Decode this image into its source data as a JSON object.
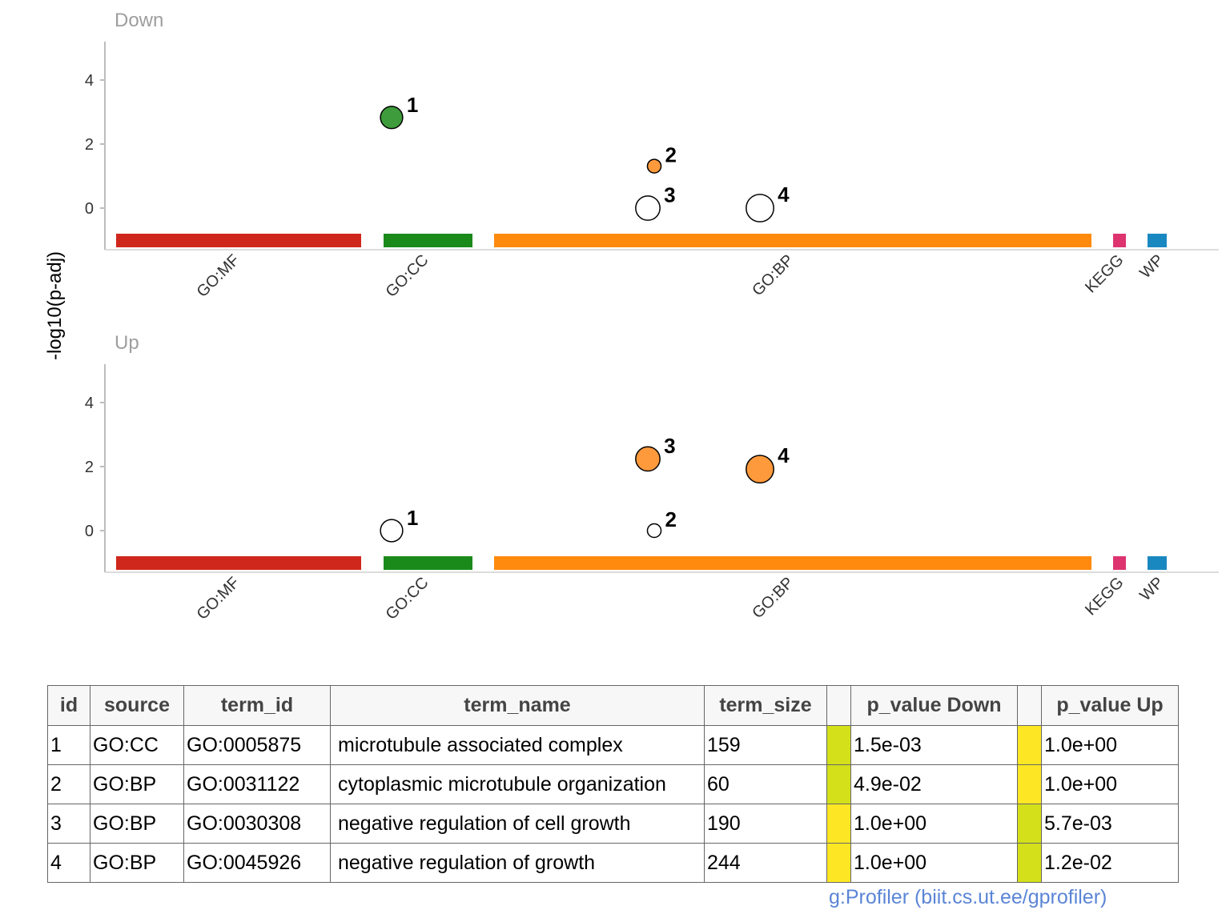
{
  "chart_data": {
    "type": "scatter",
    "ylabel": "-log10(p-adj)",
    "ylim": [
      -1.3,
      5.2
    ],
    "y_ticks": [
      0,
      2,
      4
    ],
    "sources": [
      {
        "name": "GO:MF",
        "color": "#d0271c"
      },
      {
        "name": "GO:CC",
        "color": "#1a8a1a"
      },
      {
        "name": "GO:BP",
        "color": "#ff8a0e"
      },
      {
        "name": "KEGG",
        "color": "#dd3470"
      },
      {
        "name": "WP",
        "color": "#1a88c0"
      }
    ],
    "panels": [
      {
        "title": "Down",
        "points": [
          {
            "label": "1",
            "source": "GO:CC",
            "y": 2.83,
            "size": 159,
            "filled": true,
            "color": "#3f9c3c"
          },
          {
            "label": "2",
            "source": "GO:BP",
            "y": 1.31,
            "size": 60,
            "filled": true,
            "color": "#ff9a3c"
          },
          {
            "label": "3",
            "source": "GO:BP",
            "y": 0.0,
            "size": 190,
            "filled": false,
            "color": "#ffffff"
          },
          {
            "label": "4",
            "source": "GO:BP",
            "y": 0.0,
            "size": 244,
            "filled": false,
            "color": "#ffffff"
          }
        ]
      },
      {
        "title": "Up",
        "points": [
          {
            "label": "1",
            "source": "GO:CC",
            "y": 0.0,
            "size": 159,
            "filled": false,
            "color": "#ffffff"
          },
          {
            "label": "2",
            "source": "GO:BP",
            "y": 0.0,
            "size": 60,
            "filled": false,
            "color": "#ffffff"
          },
          {
            "label": "3",
            "source": "GO:BP",
            "y": 2.24,
            "size": 190,
            "filled": true,
            "color": "#ff9a3c"
          },
          {
            "label": "4",
            "source": "GO:BP",
            "y": 1.92,
            "size": 244,
            "filled": true,
            "color": "#ff9a3c"
          }
        ]
      }
    ]
  },
  "table": {
    "headers": [
      "id",
      "source",
      "term_id",
      "term_name",
      "term_size",
      "p_value Down",
      "p_value Up"
    ],
    "rows": [
      {
        "id": "1",
        "source": "GO:CC",
        "term_id": "GO:0005875",
        "term_name": "microtubule associated complex",
        "term_size": "159",
        "p_down": "1.5e-03",
        "p_up": "1.0e+00",
        "down_color": "#d4e01a",
        "up_color": "#fde724"
      },
      {
        "id": "2",
        "source": "GO:BP",
        "term_id": "GO:0031122",
        "term_name": "cytoplasmic microtubule organization",
        "term_size": " 60",
        "p_down": "4.9e-02",
        "p_up": "1.0e+00",
        "down_color": "#d4e01a",
        "up_color": "#fde724"
      },
      {
        "id": "3",
        "source": "GO:BP",
        "term_id": "GO:0030308",
        "term_name": "negative regulation of cell growth",
        "term_size": "190",
        "p_down": "1.0e+00",
        "p_up": "5.7e-03",
        "down_color": "#fde724",
        "up_color": "#d4e01a"
      },
      {
        "id": "4",
        "source": "GO:BP",
        "term_id": "GO:0045926",
        "term_name": "negative regulation of growth",
        "term_size": "244",
        "p_down": "1.0e+00",
        "p_up": "1.2e-02",
        "down_color": "#fde724",
        "up_color": "#d4e01a"
      }
    ]
  },
  "caption": "g:Profiler (biit.cs.ut.ee/gprofiler)"
}
